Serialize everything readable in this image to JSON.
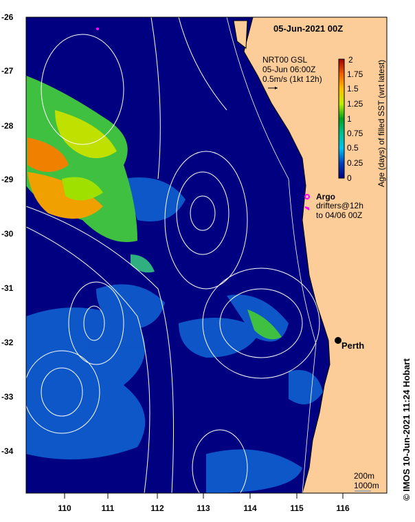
{
  "title": "05-Jun-2021 00Z",
  "current_legend": {
    "line1": "NRT00 GSL",
    "line2": "05-Jun 06:00Z",
    "line3": "0.5m/s (1kt 12h)"
  },
  "colorbar": {
    "label": "Age (days) of filled SST (wrt latest)",
    "ticks": [
      "2",
      "1.75",
      "1.5",
      "1.25",
      "1",
      "0.75",
      "0.5",
      "0.25",
      "0"
    ]
  },
  "argo": {
    "label": "Argo",
    "drifters": "drifters@12h",
    "to": "to 04/06 00Z"
  },
  "city": "Perth",
  "depth_legend": {
    "d200": "200m",
    "d1000": "1000m"
  },
  "credit": "© IMOS 10-Jun-2021 11:24 Hobart",
  "x_ticks": [
    "110",
    "111",
    "112",
    "113",
    "114",
    "115",
    "116"
  ],
  "y_ticks": [
    "-26",
    "-27",
    "-28",
    "-29",
    "-30",
    "-31",
    "-32",
    "-33",
    "-34"
  ],
  "colors": {
    "ocean": "#000080",
    "land": "#fccc99",
    "accent": "#ff00ff"
  }
}
